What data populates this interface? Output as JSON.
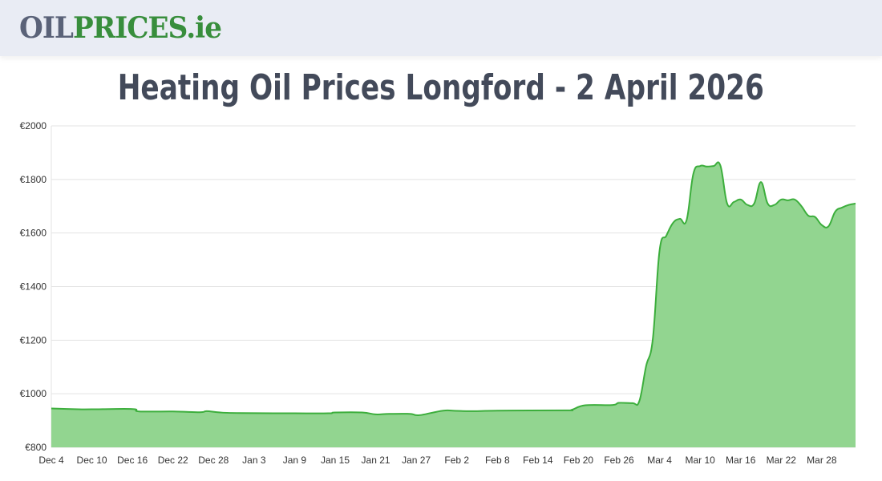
{
  "header": {
    "logo_part1": "OIL",
    "logo_part2": "PRICES",
    "logo_part3": ".ie"
  },
  "title": "Heating Oil Prices Longford - 2 April 2026",
  "chart_data": {
    "type": "area",
    "title": "Heating Oil Prices Longford - 2 April 2026",
    "xlabel": "",
    "ylabel": "",
    "ylim": [
      800,
      2000
    ],
    "yticks": [
      800,
      1000,
      1200,
      1400,
      1600,
      1800,
      2000
    ],
    "ytick_labels": [
      "€800",
      "€1000",
      "€1200",
      "€1400",
      "€1600",
      "€1800",
      "€2000"
    ],
    "xlim": [
      "2025-12-04",
      "2026-04-02"
    ],
    "xtick_labels": [
      "Dec 4",
      "Dec 10",
      "Dec 16",
      "Dec 22",
      "Dec 28",
      "Jan 3",
      "Jan 9",
      "Jan 15",
      "Jan 21",
      "Jan 27",
      "Feb 2",
      "Feb 8",
      "Feb 14",
      "Feb 20",
      "Feb 26",
      "Mar 4",
      "Mar 10",
      "Mar 16",
      "Mar 22",
      "Mar 28"
    ],
    "grid": true,
    "line_color": "#3cae3c",
    "fill_color": "#92d590",
    "points": [
      [
        "2025-12-04",
        945
      ],
      [
        "2025-12-08",
        942
      ],
      [
        "2025-12-10",
        942
      ],
      [
        "2025-12-16",
        943
      ],
      [
        "2025-12-17",
        934
      ],
      [
        "2025-12-22",
        934
      ],
      [
        "2025-12-26",
        931
      ],
      [
        "2025-12-27",
        935
      ],
      [
        "2025-12-29",
        930
      ],
      [
        "2026-01-01",
        928
      ],
      [
        "2026-01-09",
        927
      ],
      [
        "2026-01-14",
        927
      ],
      [
        "2026-01-15",
        930
      ],
      [
        "2026-01-19",
        930
      ],
      [
        "2026-01-21",
        923
      ],
      [
        "2026-01-23",
        925
      ],
      [
        "2026-01-26",
        925
      ],
      [
        "2026-01-27",
        920
      ],
      [
        "2026-01-28",
        922
      ],
      [
        "2026-01-31",
        937
      ],
      [
        "2026-02-02",
        936
      ],
      [
        "2026-02-05",
        935
      ],
      [
        "2026-02-08",
        937
      ],
      [
        "2026-02-18",
        938
      ],
      [
        "2026-02-19",
        940
      ],
      [
        "2026-02-21",
        957
      ],
      [
        "2026-02-25",
        958
      ],
      [
        "2026-02-26",
        966
      ],
      [
        "2026-02-28",
        965
      ],
      [
        "2026-03-01",
        972
      ],
      [
        "2026-03-02",
        1102
      ],
      [
        "2026-03-03",
        1204
      ],
      [
        "2026-03-04",
        1534
      ],
      [
        "2026-03-05",
        1590
      ],
      [
        "2026-03-06",
        1638
      ],
      [
        "2026-03-07",
        1653
      ],
      [
        "2026-03-08",
        1648
      ],
      [
        "2026-03-09",
        1821
      ],
      [
        "2026-03-10",
        1850
      ],
      [
        "2026-03-11",
        1848
      ],
      [
        "2026-03-12",
        1850
      ],
      [
        "2026-03-13",
        1852
      ],
      [
        "2026-03-14",
        1710
      ],
      [
        "2026-03-15",
        1716
      ],
      [
        "2026-03-16",
        1725
      ],
      [
        "2026-03-17",
        1705
      ],
      [
        "2026-03-18",
        1710
      ],
      [
        "2026-03-19",
        1790
      ],
      [
        "2026-03-20",
        1710
      ],
      [
        "2026-03-21",
        1705
      ],
      [
        "2026-03-22",
        1725
      ],
      [
        "2026-03-23",
        1722
      ],
      [
        "2026-03-24",
        1725
      ],
      [
        "2026-03-25",
        1700
      ],
      [
        "2026-03-26",
        1665
      ],
      [
        "2026-03-27",
        1660
      ],
      [
        "2026-03-28",
        1630
      ],
      [
        "2026-03-29",
        1625
      ],
      [
        "2026-03-30",
        1680
      ],
      [
        "2026-03-31",
        1695
      ],
      [
        "2026-04-01",
        1705
      ],
      [
        "2026-04-02",
        1710
      ]
    ]
  }
}
